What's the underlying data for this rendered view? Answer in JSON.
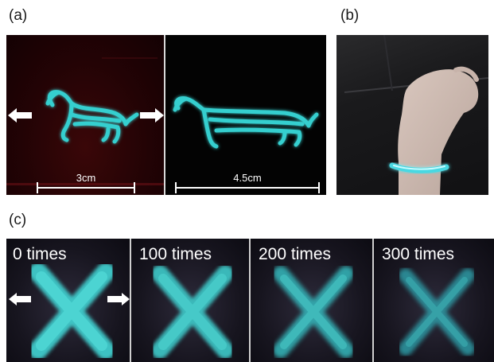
{
  "panel_labels": {
    "a": "(a)",
    "b": "(b)",
    "c": "(c)"
  },
  "panel_a": {
    "left_scale": "3cm",
    "right_scale": "4.5cm",
    "arrow_left_icon": "arrow-left-icon",
    "arrow_right_icon": "arrow-right-icon"
  },
  "panel_c": {
    "stages": [
      "0 times",
      "100 times",
      "200 times",
      "300 times"
    ]
  },
  "colors": {
    "glow": "#3fd6d6",
    "glow_core": "#7ff0ee"
  }
}
